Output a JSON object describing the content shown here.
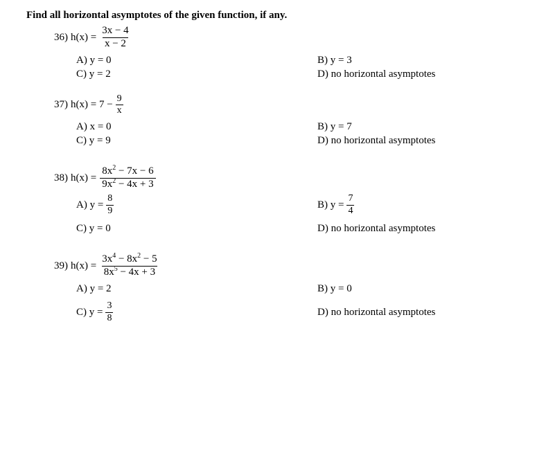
{
  "instruction": "Find all horizontal asymptotes of the given function, if any.",
  "problems": [
    {
      "number": "36)",
      "fn_prefix": "h(x) =",
      "frac": {
        "num": "3x − 4",
        "den": "x − 2"
      },
      "suffix": "",
      "options": {
        "A": "A) y = 0",
        "B": "B) y = 3",
        "C": "C) y = 2",
        "D": "D) no horizontal asymptotes"
      }
    },
    {
      "number": "37)",
      "fn_prefix": "h(x) = 7 −",
      "frac": {
        "num": "9",
        "den": "x"
      },
      "suffix": "",
      "options": {
        "A": "A) x = 0",
        "B": "B) y = 7",
        "C": "C) y = 9",
        "D": "D) no horizontal asymptotes"
      }
    },
    {
      "number": "38)",
      "fn_prefix": "h(x) =",
      "frac_sup": {
        "num": [
          [
            "8x",
            "2"
          ],
          [
            " − 7x − 6",
            ""
          ]
        ],
        "den": [
          [
            "9x",
            "2"
          ],
          [
            " − 4x + 3",
            ""
          ]
        ]
      },
      "options_frac": {
        "A": {
          "pre": "A) y =",
          "num": "8",
          "den": "9"
        },
        "B": {
          "pre": "B) y =",
          "num": "7",
          "den": "4"
        },
        "C": "C) y = 0",
        "D": "D) no horizontal asymptotes"
      }
    },
    {
      "number": "39)",
      "fn_prefix": "h(x) =",
      "frac_sup": {
        "num": [
          [
            "3x",
            "4"
          ],
          [
            " − 8x",
            "2"
          ],
          [
            " − 5",
            ""
          ]
        ],
        "den": [
          [
            "8x",
            "5"
          ],
          [
            " − 4x + 3",
            ""
          ]
        ]
      },
      "options_frac": {
        "A": "A) y = 2",
        "B": "B) y = 0",
        "C": {
          "pre": "C) y =",
          "num": "3",
          "den": "8"
        },
        "D": "D) no horizontal asymptotes"
      }
    }
  ]
}
